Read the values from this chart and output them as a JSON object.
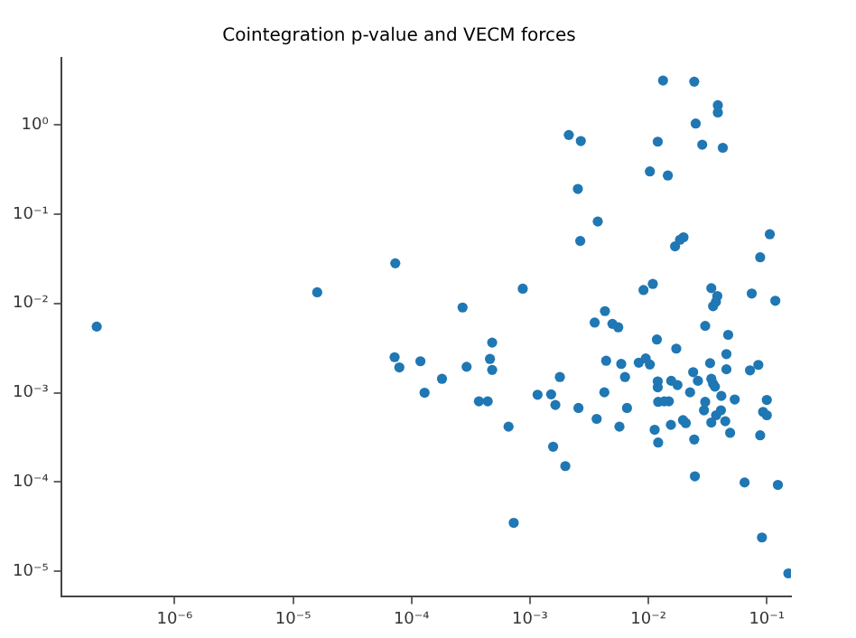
{
  "chart_data": {
    "type": "scatter",
    "title": "Cointegration p-value and VECM forces",
    "log": "xy",
    "grid": false,
    "legend": false,
    "marker": "circle",
    "xlim": [
      1.1e-07,
      0.16
    ],
    "ylim": [
      5.2e-06,
      5.6
    ],
    "xticks": [
      {
        "value": 1e-06,
        "label": "10⁻⁶"
      },
      {
        "value": 1e-05,
        "label": "10⁻⁵"
      },
      {
        "value": 0.0001,
        "label": "10⁻⁴"
      },
      {
        "value": 0.001,
        "label": "10⁻³"
      },
      {
        "value": 0.01,
        "label": "10⁻²"
      },
      {
        "value": 0.1,
        "label": "10⁻¹"
      }
    ],
    "yticks": [
      {
        "value": 1e-05,
        "label": "10⁻⁵"
      },
      {
        "value": 0.0001,
        "label": "10⁻⁴"
      },
      {
        "value": 0.001,
        "label": "10⁻³"
      },
      {
        "value": 0.01,
        "label": "10⁻²"
      },
      {
        "value": 0.1,
        "label": "10⁻¹"
      },
      {
        "value": 1,
        "label": "10⁰"
      }
    ],
    "series": [
      {
        "color": "#1f77b4",
        "x": [
          2.2e-07,
          1.6e-05,
          7.3e-05,
          7.2e-05,
          7.9e-05,
          0.000119,
          0.000129,
          0.000181,
          0.0133,
          0.0244,
          0.0386,
          0.0386,
          0.00213,
          0.00269,
          0.012,
          0.0251,
          0.0285,
          0.0425,
          0.0103,
          0.0146,
          0.00254,
          0.00374,
          0.00266,
          0.0198,
          0.0185,
          0.0168,
          0.106,
          0.0879,
          0.00087,
          0.00027,
          0.0091,
          0.0109,
          0.034,
          0.0382,
          0.0372,
          0.0352,
          0.0746,
          0.118,
          0.00352,
          0.0043,
          0.00497,
          0.00557,
          0.0302,
          0.0472,
          0.00048,
          0.00046,
          0.0118,
          0.0172,
          0.0456,
          0.000292,
          0.00048,
          0.000371,
          0.00044,
          0.00066,
          0.00073,
          0.00116,
          0.00151,
          0.00179,
          0.00164,
          0.00157,
          0.00199,
          0.00257,
          0.00366,
          0.00425,
          0.0044,
          0.0059,
          0.00635,
          0.0066,
          0.0057,
          0.0083,
          0.0095,
          0.0103,
          0.012,
          0.012,
          0.0121,
          0.0136,
          0.0149,
          0.0113,
          0.0121,
          0.0155,
          0.0156,
          0.0176,
          0.0196,
          0.0207,
          0.0225,
          0.0239,
          0.0262,
          0.0244,
          0.0247,
          0.0332,
          0.034,
          0.0352,
          0.0365,
          0.0302,
          0.0295,
          0.034,
          0.0373,
          0.041,
          0.0413,
          0.0456,
          0.0446,
          0.049,
          0.0536,
          0.0649,
          0.0721,
          0.0848,
          0.0879,
          0.091,
          0.1,
          0.093,
          0.1,
          0.124,
          0.152
        ],
        "values": [
          0.0055,
          0.0133,
          0.0281,
          0.0025,
          0.00192,
          0.00225,
          0.001,
          0.00143,
          3.12,
          3.03,
          1.65,
          1.37,
          0.767,
          0.656,
          0.646,
          1.03,
          0.597,
          0.552,
          0.3,
          0.27,
          0.191,
          0.0824,
          0.05,
          0.055,
          0.0516,
          0.0435,
          0.0594,
          0.0328,
          0.0146,
          0.009,
          0.0141,
          0.0165,
          0.0148,
          0.0121,
          0.0104,
          0.0093,
          0.0129,
          0.0107,
          0.0061,
          0.0082,
          0.0059,
          0.0054,
          0.0056,
          0.00445,
          0.00364,
          0.00239,
          0.00394,
          0.00312,
          0.00271,
          0.00195,
          0.0018,
          0.0008,
          0.0008,
          0.000417,
          3.5e-05,
          0.00095,
          0.00096,
          0.0015,
          0.00073,
          0.000249,
          0.000151,
          0.000675,
          0.00051,
          0.00101,
          0.00228,
          0.0021,
          0.0015,
          0.000675,
          0.000417,
          0.00217,
          0.00242,
          0.00207,
          0.00134,
          0.00115,
          0.00079,
          0.0008,
          0.0008,
          0.000385,
          0.000277,
          0.000437,
          0.00136,
          0.00122,
          0.000493,
          0.000457,
          0.00101,
          0.0017,
          0.00136,
          0.0003,
          0.000116,
          0.00214,
          0.00143,
          0.00126,
          0.00117,
          0.00079,
          0.000635,
          0.000464,
          0.00056,
          0.000635,
          0.00092,
          0.00183,
          0.00048,
          0.000356,
          0.00084,
          9.9e-05,
          0.00178,
          0.00205,
          0.000334,
          2.4e-05,
          0.00083,
          0.00061,
          0.00056,
          9.3e-05,
          9.5e-06
        ]
      }
    ]
  }
}
